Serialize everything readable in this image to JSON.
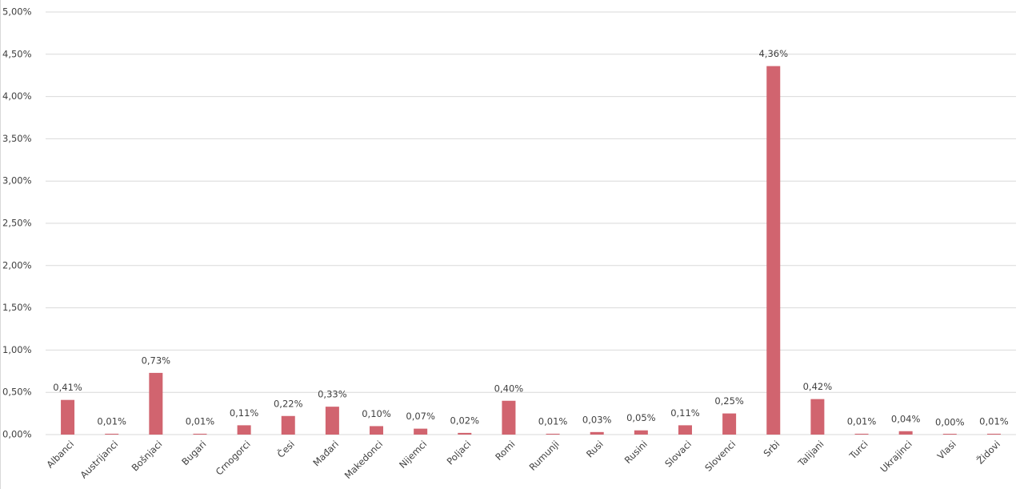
{
  "chart_data": {
    "type": "bar",
    "categories": [
      "Albanci",
      "Austrijanci",
      "Bošnjaci",
      "Bugari",
      "Crnogorci",
      "Česi",
      "Mađari",
      "Makedonci",
      "Nijemci",
      "Poljaci",
      "Romi",
      "Rumunji",
      "Rusi",
      "Rusini",
      "Slovaci",
      "Slovenci",
      "Srbi",
      "Talijani",
      "Turci",
      "Ukrajinci",
      "Vlasi",
      "Židovi"
    ],
    "values": [
      0.41,
      0.01,
      0.73,
      0.01,
      0.11,
      0.22,
      0.33,
      0.1,
      0.07,
      0.02,
      0.4,
      0.01,
      0.03,
      0.05,
      0.11,
      0.25,
      4.36,
      0.42,
      0.01,
      0.04,
      0.0,
      0.01
    ],
    "value_labels": [
      "0,41%",
      "0,01%",
      "0,73%",
      "0,01%",
      "0,11%",
      "0,22%",
      "0,33%",
      "0,10%",
      "0,07%",
      "0,02%",
      "0,40%",
      "0,01%",
      "0,03%",
      "0,05%",
      "0,11%",
      "0,25%",
      "4,36%",
      "0,42%",
      "0,01%",
      "0,04%",
      "0,00%",
      "0,01%"
    ],
    "color": "#d1646f",
    "ylim": [
      0,
      5
    ],
    "yticks": [
      {
        "value": 0,
        "label": "0,00%"
      },
      {
        "value": 0.5,
        "label": "0,50%"
      },
      {
        "value": 1,
        "label": "1,00%"
      },
      {
        "value": 1.5,
        "label": "1,50%"
      },
      {
        "value": 2,
        "label": "2,00%"
      },
      {
        "value": 2.5,
        "label": "2,50%"
      },
      {
        "value": 3,
        "label": "3,00%"
      },
      {
        "value": 3.5,
        "label": "3,50%"
      },
      {
        "value": 4,
        "label": "4,00%"
      },
      {
        "value": 4.5,
        "label": "4,50%"
      },
      {
        "value": 5,
        "label": "5,00%"
      }
    ],
    "grid": true
  }
}
